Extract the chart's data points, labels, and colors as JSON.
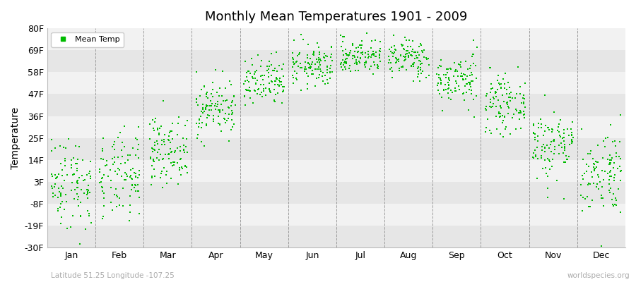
{
  "title": "Monthly Mean Temperatures 1901 - 2009",
  "ylabel": "Temperature",
  "subtitle_left": "Latitude 51.25 Longitude -107.25",
  "subtitle_right": "worldspecies.org",
  "dot_color": "#00bb00",
  "dot_size": 3,
  "background_color": "#ffffff",
  "band_colors": [
    "#e6e6e6",
    "#f2f2f2"
  ],
  "ylim": [
    -30,
    80
  ],
  "yticks": [
    -30,
    -19,
    -8,
    3,
    14,
    25,
    36,
    47,
    58,
    69,
    80
  ],
  "ytick_labels": [
    "-30F",
    "-19F",
    "-8F",
    "3F",
    "14F",
    "25F",
    "36F",
    "47F",
    "58F",
    "69F",
    "80F"
  ],
  "months": [
    "Jan",
    "Feb",
    "Mar",
    "Apr",
    "May",
    "Jun",
    "Jul",
    "Aug",
    "Sep",
    "Oct",
    "Nov",
    "Dec"
  ],
  "n_years": 109,
  "monthly_means_F": [
    2.6,
    5.0,
    18.8,
    40.0,
    52.0,
    61.0,
    66.0,
    65.0,
    54.0,
    42.0,
    21.7,
    8.1
  ],
  "monthly_stds_F": [
    11.7,
    10.8,
    8.1,
    7.2,
    6.3,
    5.4,
    4.5,
    5.0,
    6.3,
    6.8,
    9.0,
    10.8
  ],
  "seed": 42,
  "fig_width": 9.0,
  "fig_height": 4.0,
  "dpi": 100
}
